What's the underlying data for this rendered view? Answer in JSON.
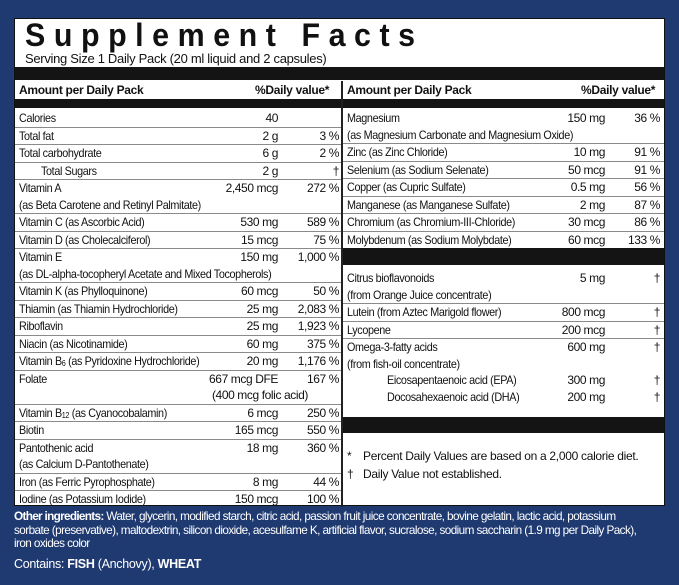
{
  "title": "Supplement Facts",
  "serving": "Serving Size 1 Daily Pack  (20 ml liquid and 2 capsules)",
  "header": {
    "amount": "Amount per Daily Pack",
    "dv": "%Daily value*"
  },
  "left_rows": [
    {
      "name": "Calories",
      "amount": "40",
      "dv": ""
    },
    {
      "name": "Total fat",
      "amount": "2 g",
      "dv": "3 %"
    },
    {
      "name": "Total carbohydrate",
      "amount": "6 g",
      "dv": "2 %"
    },
    {
      "name": "Total Sugars",
      "amount": "2 g",
      "dv": "†",
      "indent": 1
    },
    {
      "name": "Vitamin A",
      "amount": "2,450 mcg",
      "dv": "272 %",
      "sub_line": "(as Beta Carotene and Retinyl Palmitate)"
    },
    {
      "name": "Vitamin C (as Ascorbic Acid)",
      "amount": "530 mg",
      "dv": "589 %"
    },
    {
      "name": "Vitamin D (as Cholecalciferol)",
      "amount": "15 mcg",
      "dv": "75 %"
    },
    {
      "name": "Vitamin E",
      "amount": "150 mg",
      "dv": "1,000 %",
      "sub_line": "(as DL-alpha-tocopheryl Acetate and Mixed Tocopherols)"
    },
    {
      "name": "Vitamin K (as Phylloquinone)",
      "amount": "60 mcg",
      "dv": "50 %"
    },
    {
      "name": "Thiamin (as Thiamin Hydrochloride)",
      "amount": "25 mg",
      "dv": "2,083 %"
    },
    {
      "name": "Riboflavin",
      "amount": "25 mg",
      "dv": "1,923 %"
    },
    {
      "name": "Niacin (as Nicotinamide)",
      "amount": "60 mg",
      "dv": "375 %"
    },
    {
      "name": "Vitamin B",
      "sub": "6",
      "name_rest": " (as Pyridoxine Hydrochloride)",
      "amount": "20 mg",
      "dv": "1,176 %"
    },
    {
      "name": "Folate",
      "amount": "667 mcg DFE",
      "dv": "167 %",
      "amount_line2": "(400 mcg folic acid)"
    },
    {
      "name": "Vitamin B",
      "sub": "12",
      "name_rest": " (as Cyanocobalamin)",
      "amount": "6 mcg",
      "dv": "250 %"
    },
    {
      "name": "Biotin",
      "amount": "165 mcg",
      "dv": "550 %"
    },
    {
      "name": "Pantothenic acid",
      "amount": "18 mg",
      "dv": "360 %",
      "sub_line": "(as Calcium D-Pantothenate)"
    },
    {
      "name": "Iron (as Ferric Pyrophosphate)",
      "amount": "8 mg",
      "dv": "44 %"
    },
    {
      "name": "Iodine (as Potassium Iodide)",
      "amount": "150 mcg",
      "dv": "100 %"
    }
  ],
  "right_rows": [
    {
      "name": "Magnesium",
      "amount": "150 mg",
      "dv": "36 %",
      "sub_line": "(as Magnesium Carbonate and Magnesium Oxide)"
    },
    {
      "name": "Zinc (as Zinc Chloride)",
      "amount": "10 mg",
      "dv": "91 %"
    },
    {
      "name": "Selenium (as Sodium Selenate)",
      "amount": "50 mcg",
      "dv": "91 %"
    },
    {
      "name": "Copper (as Cupric Sulfate)",
      "amount": "0.5 mg",
      "dv": "56 %"
    },
    {
      "name": "Manganese (as Manganese Sulfate)",
      "amount": "2 mg",
      "dv": "87 %"
    },
    {
      "name": "Chromium (as Chromium-III-Chloride)",
      "amount": "30 mcg",
      "dv": "86 %"
    },
    {
      "name": "Molybdenum (as Sodium Molybdate)",
      "amount": "60 mcg",
      "dv": "133 %"
    }
  ],
  "right_rows2": [
    {
      "name": "Citrus bioflavonoids",
      "amount": "5 mg",
      "dv": "†",
      "sub_line": "(from Orange Juice concentrate)"
    },
    {
      "name": "Lutein (from Aztec Marigold flower)",
      "amount": "800 mcg",
      "dv": "†"
    },
    {
      "name": "Lycopene",
      "amount": "200 mcg",
      "dv": "†"
    },
    {
      "name": "Omega-3-fatty acids",
      "amount": "600 mg",
      "dv": "†",
      "sub_line": "(from fish-oil concentrate)",
      "children": [
        {
          "name": "Eicosapentaenoic acid (EPA)",
          "amount": "300 mg",
          "dv": "†"
        },
        {
          "name": "Docosahexaenoic acid (DHA)",
          "amount": "200 mg",
          "dv": "†"
        }
      ]
    }
  ],
  "footnotes": [
    {
      "symbol": "*",
      "text": "Percent Daily Values are based on a 2,000 calorie diet."
    },
    {
      "symbol": "†",
      "text": "Daily Value not established."
    }
  ],
  "other_ingredients": {
    "label": "Other ingredients:",
    "text": " Water, glycerin, modified starch, citric acid, passion fruit juice concentrate, bovine gelatin, lactic acid, potassium sorbate (preservative), maltodextrin, silicon dioxide, acesulfame K, artificial flavor, sucralose, sodium saccharin (1.9 mg per Daily Pack), iron oxides color"
  },
  "contains": {
    "label": "Contains: ",
    "allergen1": "FISH",
    "mid": " (Anchovy), ",
    "allergen2": "WHEAT"
  },
  "colors": {
    "border_blue": "#1f3a70",
    "bar_black": "#141414"
  }
}
